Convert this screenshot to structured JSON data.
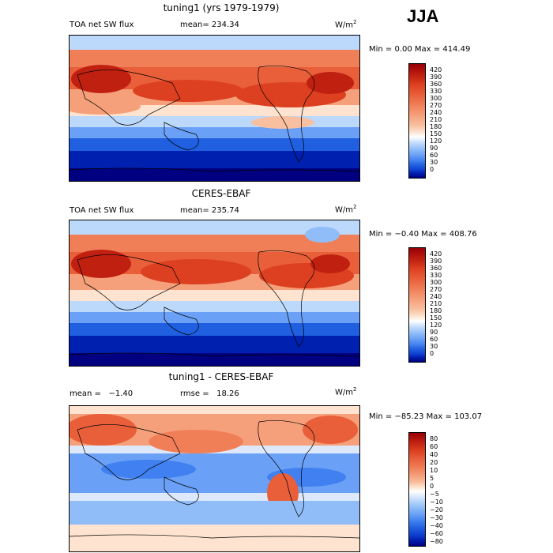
{
  "season": "JJA",
  "panels": [
    {
      "title": "tuning1 (yrs 1979-1979)",
      "left_label": "TOA net SW flux",
      "mid_label": "mean= 234.34",
      "units_base": "W/m",
      "units_exp": "2",
      "minmax": "Min =     0.00  Max = 414.49",
      "colorbar": {
        "colors": [
          "#000080",
          "#0020b0",
          "#1040d0",
          "#2060e0",
          "#4080f0",
          "#6aa0f5",
          "#90bdf8",
          "#bcd8fb",
          "#ffffff",
          "#fde3d0",
          "#f8c0a0",
          "#f5a07a",
          "#f07f58",
          "#e85f3a",
          "#dd4020",
          "#c02010",
          "#980008"
        ],
        "labels": [
          "420",
          "390",
          "360",
          "330",
          "300",
          "270",
          "240",
          "210",
          "180",
          "150",
          "120",
          "90",
          "60",
          "30",
          "0"
        ]
      }
    },
    {
      "title": "CERES-EBAF",
      "left_label": "TOA net SW flux",
      "mid_label": "mean= 235.74",
      "units_base": "W/m",
      "units_exp": "2",
      "minmax": "Min =  −0.40  Max = 408.76",
      "colorbar": {
        "colors": [
          "#000080",
          "#0020b0",
          "#1040d0",
          "#2060e0",
          "#4080f0",
          "#6aa0f5",
          "#90bdf8",
          "#bcd8fb",
          "#ffffff",
          "#fde3d0",
          "#f8c0a0",
          "#f5a07a",
          "#f07f58",
          "#e85f3a",
          "#dd4020",
          "#c02010",
          "#980008"
        ],
        "labels": [
          "420",
          "390",
          "360",
          "330",
          "300",
          "270",
          "240",
          "210",
          "180",
          "150",
          "120",
          "90",
          "60",
          "30",
          "0"
        ]
      }
    },
    {
      "title": "tuning1 - CERES-EBAF",
      "left_label": "mean =   −1.40",
      "mid_label": "rmse =   18.26",
      "units_base": "W/m",
      "units_exp": "2",
      "minmax": "Min = −85.23  Max = 103.07",
      "colorbar": {
        "colors": [
          "#000080",
          "#0020b0",
          "#1040d0",
          "#2060e0",
          "#4080f0",
          "#6aa0f5",
          "#90bdf8",
          "#bcd8fb",
          "#dde9fb",
          "#ffffff",
          "#fde3d0",
          "#f8c0a0",
          "#f5a07a",
          "#f07f58",
          "#e85f3a",
          "#dd4020",
          "#c02010",
          "#980008"
        ],
        "labels": [
          "80",
          "60",
          "40",
          "20",
          "10",
          "5",
          "0",
          "−5",
          "−10",
          "−20",
          "−30",
          "−40",
          "−60",
          "−80"
        ]
      }
    }
  ]
}
